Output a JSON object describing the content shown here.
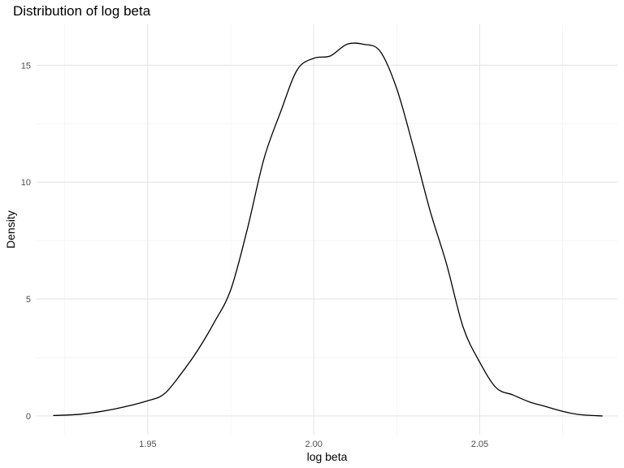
{
  "chart_data": {
    "type": "line",
    "title": "Distribution of log beta",
    "xlabel": "log beta",
    "ylabel": "Density",
    "xlim": [
      1.9165,
      2.0915
    ],
    "ylim": [
      -0.8,
      16.75
    ],
    "x_ticks": [
      "1.95",
      "2.00",
      "2.05"
    ],
    "x_tick_values": [
      1.95,
      2.0,
      2.05
    ],
    "y_ticks": [
      "0",
      "5",
      "10",
      "15"
    ],
    "y_tick_values": [
      0,
      5,
      10,
      15
    ],
    "grid": true,
    "line_color": "#000000",
    "series": [
      {
        "name": "",
        "x": [
          1.9215,
          1.93,
          1.94,
          1.95,
          1.955,
          1.96,
          1.965,
          1.97,
          1.975,
          1.98,
          1.985,
          1.99,
          1.995,
          2.0,
          2.005,
          2.01,
          2.015,
          2.02,
          2.025,
          2.03,
          2.035,
          2.04,
          2.045,
          2.05,
          2.055,
          2.06,
          2.065,
          2.07,
          2.075,
          2.08,
          2.087
        ],
        "y": [
          0.02,
          0.08,
          0.3,
          0.65,
          0.95,
          1.8,
          2.8,
          4.0,
          5.4,
          8.0,
          11.0,
          13.0,
          14.8,
          15.3,
          15.4,
          15.9,
          15.9,
          15.6,
          14.0,
          11.5,
          8.8,
          6.5,
          3.8,
          2.3,
          1.2,
          0.9,
          0.6,
          0.4,
          0.2,
          0.06,
          0.0
        ]
      }
    ]
  }
}
